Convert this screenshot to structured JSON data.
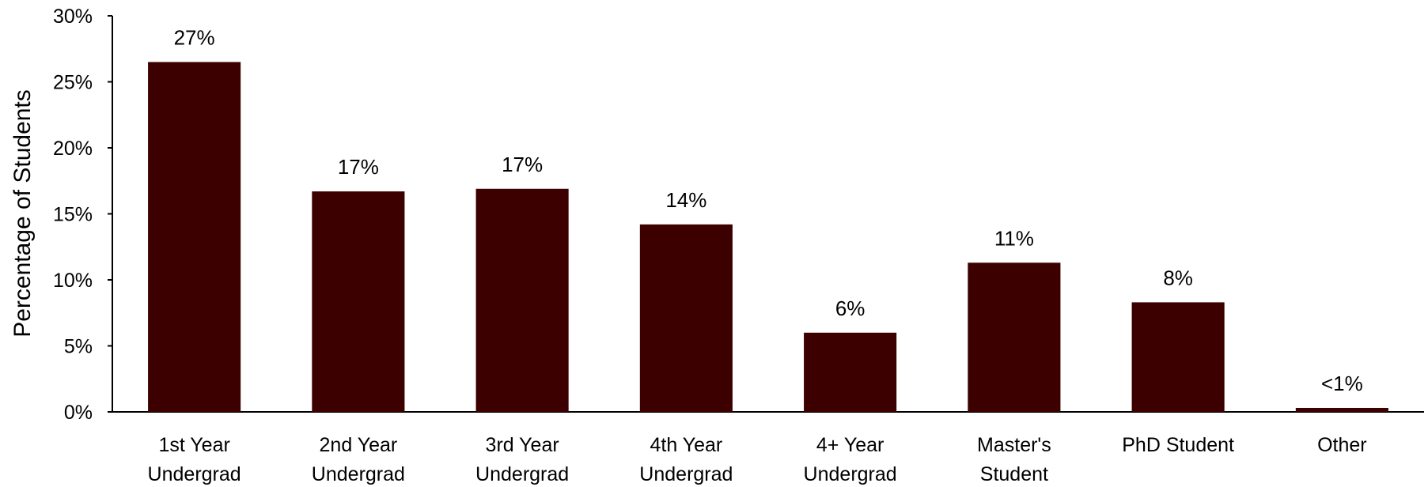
{
  "chart_data": {
    "type": "bar",
    "categories": [
      [
        "1st Year",
        "Undergrad"
      ],
      [
        "2nd Year",
        "Undergrad"
      ],
      [
        "3rd Year",
        "Undergrad"
      ],
      [
        "4th Year",
        "Undergrad"
      ],
      [
        "4+ Year",
        "Undergrad"
      ],
      [
        "Master's",
        "Student"
      ],
      [
        "PhD Student"
      ],
      [
        "Other"
      ]
    ],
    "values": [
      26.5,
      16.7,
      16.9,
      14.2,
      6.0,
      11.3,
      8.3,
      0.3
    ],
    "data_labels": [
      "27%",
      "17%",
      "17%",
      "14%",
      "6%",
      "11%",
      "8%",
      "<1%"
    ],
    "title": "",
    "xlabel": "",
    "ylabel": "Percentage of Students",
    "ylim": [
      0,
      30
    ],
    "yticks": [
      {
        "value": 0,
        "label": "0%"
      },
      {
        "value": 5,
        "label": "5%"
      },
      {
        "value": 10,
        "label": "10%"
      },
      {
        "value": 15,
        "label": "15%"
      },
      {
        "value": 20,
        "label": "20%"
      },
      {
        "value": 25,
        "label": "25%"
      },
      {
        "value": 30,
        "label": "30%"
      }
    ],
    "grid": false,
    "bar_color": "#3d0000",
    "axis_color": "#000000"
  }
}
